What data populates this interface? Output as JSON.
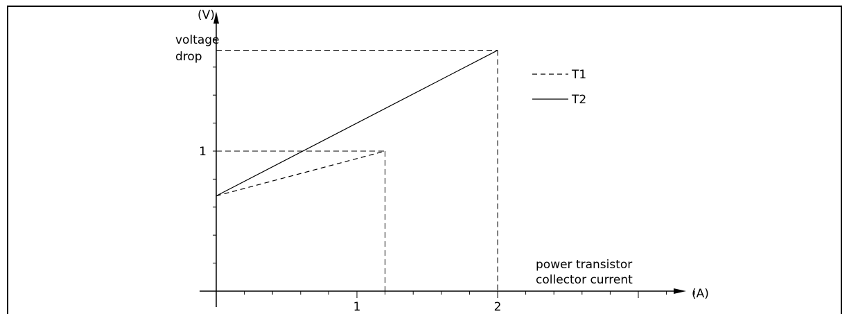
{
  "chart_data": {
    "type": "line",
    "x_unit_label": "(A)",
    "y_unit_label": "(V)",
    "xlabel_lines": [
      "power transistor",
      "collector current"
    ],
    "ylabel_lines": [
      "voltage",
      "drop"
    ],
    "x_ticks": [
      {
        "value": 1,
        "label": "1"
      },
      {
        "value": 2,
        "label": "2"
      }
    ],
    "y_ticks": [
      {
        "value": 1,
        "label": "1"
      }
    ],
    "xlim": [
      0,
      3.43
    ],
    "ylim": [
      0,
      1.97
    ],
    "legend_position": "top-right",
    "series": [
      {
        "name": "T1",
        "style": "dashed",
        "x": [
          0,
          1.2
        ],
        "y": [
          0.68,
          1.0
        ],
        "max_point": {
          "x": 1.2,
          "y": 1.0
        }
      },
      {
        "name": "T2",
        "style": "solid",
        "x": [
          0,
          2.0
        ],
        "y": [
          0.68,
          1.72
        ],
        "max_point": {
          "x": 2.0,
          "y": 1.72
        }
      }
    ]
  }
}
